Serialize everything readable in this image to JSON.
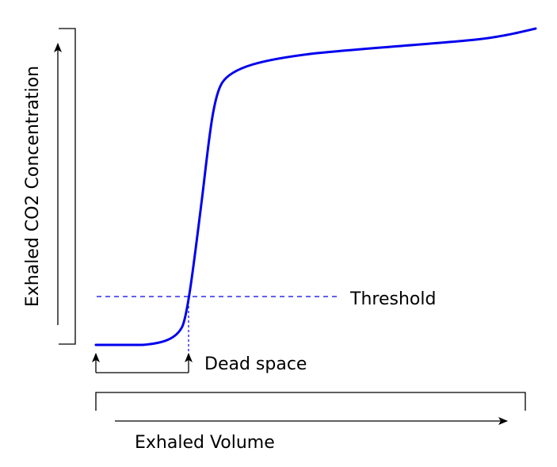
{
  "labels": {
    "y_axis": "Exhaled CO2 Concentration",
    "x_axis": "Exhaled Volume",
    "threshold": "Threshold",
    "dead_space": "Dead space"
  },
  "colors": {
    "curve": "#0000ee",
    "threshold_line": "#0000ee",
    "axes": "#000000",
    "text": "#000000"
  }
}
